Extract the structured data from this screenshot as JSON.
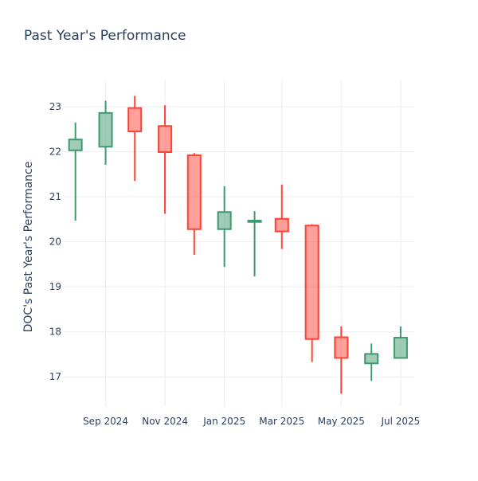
{
  "chart_data": {
    "type": "candlestick",
    "title": "Past Year's Performance",
    "xlabel": "",
    "ylabel": "DOC's Past Year's Performance",
    "ylim": [
      16.35,
      23.6
    ],
    "yticks": [
      17,
      18,
      19,
      20,
      21,
      22,
      23
    ],
    "grid": true,
    "legend": "none",
    "colors": {
      "increasing": "#3D9970",
      "decreasing": "#FF4136",
      "grid": "#EEEEEE",
      "text": "#2A3F5F"
    },
    "xticks": [
      {
        "label": "Sep 2024",
        "date": "2024-09-01"
      },
      {
        "label": "Nov 2024",
        "date": "2024-11-01"
      },
      {
        "label": "Jan 2025",
        "date": "2025-01-01"
      },
      {
        "label": "Mar 2025",
        "date": "2025-03-01"
      },
      {
        "label": "May 2025",
        "date": "2025-05-01"
      },
      {
        "label": "Jul 2025",
        "date": "2025-07-01"
      }
    ],
    "xrange": [
      "2024-07-20",
      "2025-07-15"
    ],
    "candles": [
      {
        "date": "2024-08-01",
        "open": 22.03,
        "high": 22.65,
        "low": 20.47,
        "close": 22.27
      },
      {
        "date": "2024-09-01",
        "open": 22.11,
        "high": 23.13,
        "low": 21.71,
        "close": 22.86
      },
      {
        "date": "2024-10-01",
        "open": 22.97,
        "high": 23.24,
        "low": 21.35,
        "close": 22.45
      },
      {
        "date": "2024-11-01",
        "open": 22.57,
        "high": 23.03,
        "low": 20.62,
        "close": 21.99
      },
      {
        "date": "2024-12-01",
        "open": 21.92,
        "high": 21.97,
        "low": 19.71,
        "close": 20.28
      },
      {
        "date": "2025-01-01",
        "open": 20.28,
        "high": 21.23,
        "low": 19.44,
        "close": 20.66
      },
      {
        "date": "2025-02-01",
        "open": 20.44,
        "high": 20.68,
        "low": 19.23,
        "close": 20.47
      },
      {
        "date": "2025-03-01",
        "open": 20.51,
        "high": 21.27,
        "low": 19.84,
        "close": 20.23
      },
      {
        "date": "2025-04-01",
        "open": 20.36,
        "high": 20.39,
        "low": 17.33,
        "close": 17.84
      },
      {
        "date": "2025-05-01",
        "open": 17.88,
        "high": 18.12,
        "low": 16.63,
        "close": 17.42
      },
      {
        "date": "2025-06-01",
        "open": 17.3,
        "high": 17.74,
        "low": 16.91,
        "close": 17.51
      },
      {
        "date": "2025-07-01",
        "open": 17.42,
        "high": 18.12,
        "low": 17.42,
        "close": 17.87
      }
    ]
  }
}
